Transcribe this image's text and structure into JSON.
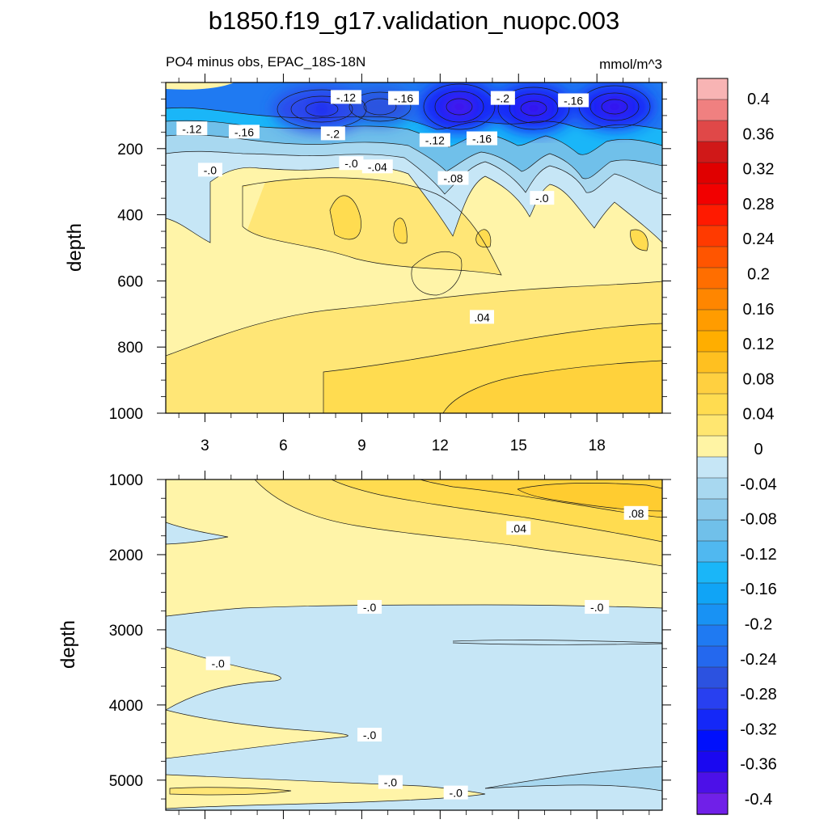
{
  "title": "b1850.f19_g17.validation_nuopc.003",
  "chart_data": [
    {
      "type": "contour",
      "panel": "upper",
      "subtitle_left": "PO4 minus obs, EPAC_18S-18N",
      "subtitle_right": "mmol/m^3",
      "ylabel": "depth",
      "xlabel": "",
      "xlim": [
        1.5,
        20.5
      ],
      "ylim": [
        0,
        1000
      ],
      "y_reversed": true,
      "xticks": [
        "3",
        "6",
        "9",
        "12",
        "15",
        "18"
      ],
      "xtick_values": [
        3,
        6,
        9,
        12,
        15,
        18
      ],
      "yticks": [
        "200",
        "400",
        "600",
        "800",
        "1000"
      ],
      "ytick_values": [
        200,
        400,
        600,
        800,
        1000
      ],
      "contour_labels": [
        {
          "text": "-.12",
          "x": 2.5,
          "y": 140
        },
        {
          "text": "-.16",
          "x": 4.5,
          "y": 150
        },
        {
          "text": "-.12",
          "x": 8.4,
          "y": 45
        },
        {
          "text": "-.16",
          "x": 10.6,
          "y": 48
        },
        {
          "text": "-.2",
          "x": 7.9,
          "y": 155
        },
        {
          "text": "-.2",
          "x": 14.4,
          "y": 48
        },
        {
          "text": "-.16",
          "x": 17.1,
          "y": 55
        },
        {
          "text": "-.12",
          "x": 11.8,
          "y": 175
        },
        {
          "text": "-.16",
          "x": 13.6,
          "y": 170
        },
        {
          "text": "-.0",
          "x": 3.2,
          "y": 265
        },
        {
          "text": "-.0",
          "x": 8.6,
          "y": 245
        },
        {
          "text": "-.04",
          "x": 9.6,
          "y": 255
        },
        {
          "text": "-.08",
          "x": 12.5,
          "y": 290
        },
        {
          "text": "-.0",
          "x": 15.9,
          "y": 350
        },
        {
          "text": ".04",
          "x": 13.6,
          "y": 710
        }
      ],
      "minima_depth_m": 75,
      "minima_x": [
        7.5,
        9.8,
        12.7,
        15.6,
        18.6
      ]
    },
    {
      "type": "contour",
      "panel": "lower",
      "ylabel": "depth",
      "xlabel": "",
      "xlim": [
        1.5,
        20.5
      ],
      "ylim": [
        1000,
        5400
      ],
      "y_reversed": true,
      "xticks": [
        "",
        "",
        "",
        "",
        "",
        ""
      ],
      "xtick_values": [
        3,
        6,
        9,
        12,
        15,
        18
      ],
      "yticks": [
        "1000",
        "2000",
        "3000",
        "4000",
        "5000"
      ],
      "ytick_values": [
        1000,
        2000,
        3000,
        4000,
        5000
      ],
      "contour_labels": [
        {
          "text": ".04",
          "x": 15.0,
          "y": 1650
        },
        {
          "text": ".08",
          "x": 19.5,
          "y": 1450
        },
        {
          "text": "-.0",
          "x": 9.3,
          "y": 2700
        },
        {
          "text": "-.0",
          "x": 18.0,
          "y": 2700
        },
        {
          "text": "-.0",
          "x": 3.5,
          "y": 3450
        },
        {
          "text": "-.0",
          "x": 9.3,
          "y": 4400
        },
        {
          "text": "-.0",
          "x": 10.1,
          "y": 5030
        },
        {
          "text": "-.0",
          "x": 12.6,
          "y": 5170
        }
      ]
    }
  ],
  "colorbar": {
    "labels": [
      "0.4",
      "0.36",
      "0.32",
      "0.28",
      "0.24",
      "0.2",
      "0.16",
      "0.12",
      "0.08",
      "0.04",
      "0",
      "-0.04",
      "-0.08",
      "-0.12",
      "-0.16",
      "-0.2",
      "-0.24",
      "-0.28",
      "-0.32",
      "-0.36",
      "-0.4"
    ],
    "colors": [
      "#f8b4b4",
      "#f08080",
      "#e04848",
      "#d01818",
      "#e00000",
      "#f20000",
      "#ff1a00",
      "#ff3a00",
      "#ff5500",
      "#ff6e00",
      "#ff8600",
      "#ff9c00",
      "#ffae00",
      "#ffc020",
      "#ffd040",
      "#ffdc50",
      "#ffe670",
      "#fff4a4",
      "#c6e6f6",
      "#a8d8f0",
      "#8ccbec",
      "#70c0ea",
      "#50b8f0",
      "#1ab6f8",
      "#10a4f6",
      "#1892f4",
      "#1f7af2",
      "#2468ee",
      "#2c52e0",
      "#2840f0",
      "#1428f8",
      "#0010fc",
      "#1a08f0",
      "#4c10e8",
      "#7020e8"
    ]
  }
}
